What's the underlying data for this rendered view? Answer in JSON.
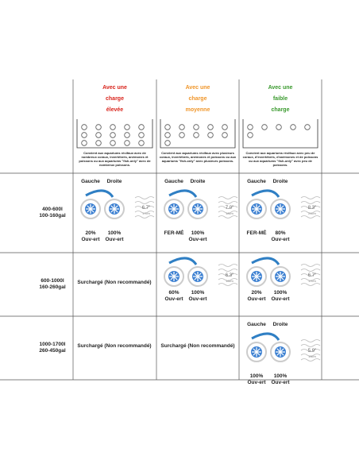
{
  "header": {
    "columns": [
      {
        "title": [
          "Avec une",
          "charge",
          "élevée"
        ],
        "color": "#d9241c",
        "description": "Convient aux aquariums récifaux avec de nombreux coraux, invertébrés, anémones et poissons ou aux aquariums \"fish-only\" avec de nombreux poissons."
      },
      {
        "title": [
          "Avec une",
          "charge",
          "moyenne"
        ],
        "color": "#f0962a",
        "description": "Convient aux aquariums récifaux avec plusieurs coraux, invertébrés, anémones et poissons ou aux aquariums \"fish-only\" avec plusieurs poissons."
      },
      {
        "title": [
          "Avec une",
          "faible",
          "charge"
        ],
        "color": "#3a9a2e",
        "description": "Convient aux aquariums récifaux avec peu de coraux, d'invertébrés, d'anémones et de poissons ou aux aquariums \"fish-only\" avec peu de poissons."
      }
    ]
  },
  "rows": [
    {
      "label": [
        "400-600l",
        "100-160gal"
      ],
      "cells": [
        {
          "left_header": "Gauche",
          "right_header": "Droite",
          "left": [
            "20%",
            "Ouv-ert"
          ],
          "right": [
            "100%",
            "Ouv-ert"
          ],
          "height": [
            "6.7\"",
            "17cm"
          ]
        },
        {
          "left_header": "Gauche",
          "right_header": "Droite",
          "left": [
            "FER-MÉ"
          ],
          "right": [
            "100%",
            "Ouv-ert"
          ],
          "height": [
            "7.0\"",
            "18cm"
          ]
        },
        {
          "left_header": "Gauche",
          "right_header": "Droite",
          "left": [
            "FER-MÉ"
          ],
          "right": [
            "80%",
            "Ouv-ert"
          ],
          "height": [
            "8.3\"",
            "21cm"
          ]
        }
      ]
    },
    {
      "label": [
        "600-1000l",
        "160-260gal"
      ],
      "cells": [
        {
          "status": "Surchargé (Non recommandé)"
        },
        {
          "left": [
            "60%",
            "Ouv-ert"
          ],
          "right": [
            "100%",
            "Ouv-ert"
          ],
          "height": [
            "6.3\"",
            "16cm"
          ]
        },
        {
          "left": [
            "20%",
            "Ouv-ert"
          ],
          "right": [
            "100%",
            "Ouv-ert"
          ],
          "height": [
            "6.7\"",
            "17cm"
          ]
        }
      ]
    },
    {
      "label": [
        "1000-1700l",
        "260-450gal"
      ],
      "cells": [
        {
          "status": "Surchargé (Non recommandé)"
        },
        {
          "status": "Surchargé (Non recommandé)"
        },
        {
          "left_header": "Gauche",
          "right_header": "Droite",
          "left": [
            "100%",
            "Ouv-ert"
          ],
          "right": [
            "100%",
            "Ouv-ert"
          ],
          "height": [
            "5.9\"",
            "15cm"
          ]
        }
      ]
    }
  ]
}
